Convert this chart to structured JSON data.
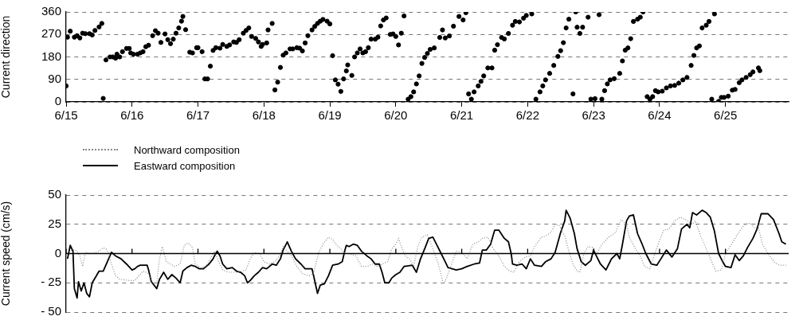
{
  "chart_data": [
    {
      "type": "scatter",
      "ylabel": "Current direction",
      "color": "#000000",
      "marker": "circle",
      "grid": "y",
      "xlim": [
        "--06-15T00:00",
        "--06-25T23:00"
      ],
      "ylim": [
        0,
        360
      ],
      "xticks": [
        {
          "value": "--06-15",
          "label": "6/15"
        },
        {
          "value": "--06-16",
          "label": "6/16"
        },
        {
          "value": "--06-17",
          "label": "6/17"
        },
        {
          "value": "--06-18",
          "label": "6/18"
        },
        {
          "value": "--06-19",
          "label": "6/19"
        },
        {
          "value": "--06-20",
          "label": "6/20"
        },
        {
          "value": "--06-21",
          "label": "6/21"
        },
        {
          "value": "--06-22",
          "label": "6/22"
        },
        {
          "value": "--06-23",
          "label": "6/23"
        },
        {
          "value": "--06-24",
          "label": "6/24"
        },
        {
          "value": "--06-25",
          "label": "6/25"
        }
      ],
      "yticks": [
        0,
        90,
        180,
        270,
        360
      ],
      "x": [
        "--06-15T00:00",
        "--06-15T00:30",
        "--06-15T01:30",
        "--06-15T03:00",
        "--06-15T04:00",
        "--06-15T05:00",
        "--06-15T06:00",
        "--06-15T07:00",
        "--06-15T08:30",
        "--06-15T09:30",
        "--06-15T10:30",
        "--06-15T12:00",
        "--06-15T13:00",
        "--06-15T13:30",
        "--06-15T14:30",
        "--06-15T16:00",
        "--06-15T17:00",
        "--06-15T18:00",
        "--06-15T18:30",
        "--06-15T19:30",
        "--06-15T20:30",
        "--06-15T22:00",
        "--06-15T23:00",
        "--06-15T23:30",
        "--06-16T00:30",
        "--06-16T02:00",
        "--06-16T03:00",
        "--06-16T04:00",
        "--06-16T05:00",
        "--06-16T06:00",
        "--06-16T07:30",
        "--06-16T08:30",
        "--06-16T09:30",
        "--06-16T10:30",
        "--06-16T12:00",
        "--06-16T13:00",
        "--06-16T14:00",
        "--06-16T15:00",
        "--06-16T16:00",
        "--06-16T17:00",
        "--06-16T18:00",
        "--06-16T18:30",
        "--06-16T19:30",
        "--06-16T21:00",
        "--06-16T22:00",
        "--06-16T23:30",
        "--06-17T00:00",
        "--06-17T01:30",
        "--06-17T02:30",
        "--06-17T03:30",
        "--06-17T04:30",
        "--06-17T05:30",
        "--06-17T06:30",
        "--06-17T08:00",
        "--06-17T09:00",
        "--06-17T10:30",
        "--06-17T11:30",
        "--06-17T13:00",
        "--06-17T14:00",
        "--06-17T15:00",
        "--06-17T16:30",
        "--06-17T17:30",
        "--06-17T18:30",
        "--06-17T19:30",
        "--06-17T21:00",
        "--06-17T22:00",
        "--06-17T23:00",
        "--06-17T23:30",
        "--06-18T01:00",
        "--06-18T01:30",
        "--06-18T03:00",
        "--06-18T04:00",
        "--06-18T05:00",
        "--06-18T06:00",
        "--06-18T07:00",
        "--06-18T08:00",
        "--06-18T09:30",
        "--06-18T10:30",
        "--06-18T12:00",
        "--06-18T13:00",
        "--06-18T14:00",
        "--06-18T15:00",
        "--06-18T16:00",
        "--06-18T17:30",
        "--06-18T18:30",
        "--06-18T19:30",
        "--06-18T20:30",
        "--06-18T21:30",
        "--06-18T23:00",
        "--06-19T00:00",
        "--06-19T01:00",
        "--06-19T02:00",
        "--06-19T03:00",
        "--06-19T04:00",
        "--06-19T05:00",
        "--06-19T06:00",
        "--06-19T06:30",
        "--06-19T08:00",
        "--06-19T09:00",
        "--06-19T10:00",
        "--06-19T11:00",
        "--06-19T12:00",
        "--06-19T13:00",
        "--06-19T14:00",
        "--06-19T15:00",
        "--06-19T16:30",
        "--06-19T17:30",
        "--06-19T18:30",
        "--06-19T19:30",
        "--06-19T20:30",
        "--06-19T22:00",
        "--06-19T23:00",
        "--06-20T00:00",
        "--06-20T01:00",
        "--06-20T02:00",
        "--06-20T03:00",
        "--06-20T04:30",
        "--06-20T05:30",
        "--06-20T06:30",
        "--06-20T07:30",
        "--06-20T08:30",
        "--06-20T09:30",
        "--06-20T10:30",
        "--06-20T11:30",
        "--06-20T12:30",
        "--06-20T14:00",
        "--06-20T16:00",
        "--06-20T17:00",
        "--06-20T18:00",
        "--06-20T19:30",
        "--06-20T21:00",
        "--06-20T23:00",
        "--06-21T00:30",
        "--06-21T01:30",
        "--06-21T02:30",
        "--06-21T03:30",
        "--06-21T04:30",
        "--06-21T06:00",
        "--06-21T07:00",
        "--06-21T08:00",
        "--06-21T09:30",
        "--06-21T11:00",
        "--06-21T12:00",
        "--06-21T13:00",
        "--06-21T14:30",
        "--06-21T15:30",
        "--06-21T17:00",
        "--06-21T18:30",
        "--06-21T19:30",
        "--06-21T21:00",
        "--06-21T22:30",
        "--06-21T23:30",
        "--06-22T01:30",
        "--06-22T03:00",
        "--06-22T04:30",
        "--06-22T05:30",
        "--06-22T06:30",
        "--06-22T08:00",
        "--06-22T09:30",
        "--06-22T11:00",
        "--06-22T12:00",
        "--06-22T13:00",
        "--06-22T14:00",
        "--06-22T15:00",
        "--06-22T16:30",
        "--06-22T17:30",
        "--06-22T18:00",
        "--06-22T19:00",
        "--06-22T20:00",
        "--06-22T22:00",
        "--06-22T23:00",
        "--06-23T00:30",
        "--06-23T02:00",
        "--06-23T03:00",
        "--06-23T04:00",
        "--06-23T05:00",
        "--06-23T06:00",
        "--06-23T07:30",
        "--06-23T09:30",
        "--06-23T10:30",
        "--06-23T11:30",
        "--06-23T12:30",
        "--06-23T13:30",
        "--06-23T14:30",
        "--06-23T16:00",
        "--06-23T17:00",
        "--06-23T18:00",
        "--06-23T19:30",
        "--06-23T20:30",
        "--06-23T21:30",
        "--06-23T22:30",
        "--06-23T23:30",
        "--06-24T01:00",
        "--06-24T02:30",
        "--06-24T04:00",
        "--06-24T05:30",
        "--06-24T07:00",
        "--06-24T08:30",
        "--06-24T10:00",
        "--06-24T11:30",
        "--06-24T12:30",
        "--06-24T13:30",
        "--06-24T14:30",
        "--06-24T15:30",
        "--06-24T17:00",
        "--06-24T18:00",
        "--06-24T19:00",
        "--06-24T20:00",
        "--06-24T21:30",
        "--06-24T22:30",
        "--06-24T23:30",
        "--06-25T01:00",
        "--06-25T02:30",
        "--06-25T03:30",
        "--06-25T05:00",
        "--06-25T06:00",
        "--06-25T07:30",
        "--06-25T09:00",
        "--06-25T10:00",
        "--06-25T12:00",
        "--06-25T12:30"
      ],
      "values": [
        64,
        259,
        283,
        259,
        265,
        256,
        275,
        273,
        273,
        268,
        286,
        300,
        314,
        14,
        168,
        180,
        180,
        175,
        191,
        180,
        201,
        214,
        214,
        196,
        191,
        191,
        196,
        201,
        221,
        227,
        265,
        285,
        275,
        238,
        272,
        249,
        233,
        251,
        275,
        296,
        323,
        342,
        289,
        199,
        196,
        217,
        217,
        201,
        92,
        92,
        143,
        206,
        217,
        215,
        230,
        222,
        228,
        240,
        238,
        249,
        275,
        286,
        296,
        262,
        254,
        240,
        222,
        230,
        236,
        288,
        314,
        48,
        79,
        138,
        187,
        196,
        212,
        212,
        217,
        215,
        204,
        236,
        265,
        288,
        302,
        314,
        323,
        330,
        323,
        312,
        185,
        88,
        71,
        42,
        92,
        124,
        148,
        106,
        180,
        196,
        212,
        196,
        201,
        217,
        251,
        251,
        259,
        304,
        328,
        336,
        270,
        272,
        262,
        228,
        275,
        344,
        11,
        21,
        40,
        72,
        104,
        154,
        178,
        194,
        210,
        216,
        258,
        288,
        256,
        264,
        303,
        342,
        328,
        357,
        32,
        11,
        40,
        64,
        82,
        104,
        136,
        136,
        207,
        229,
        258,
        252,
        274,
        307,
        322,
        320,
        335,
        346,
        352,
        11,
        40,
        64,
        88,
        114,
        146,
        182,
        205,
        237,
        296,
        331,
        32,
        360,
        299,
        274,
        299,
        339,
        11,
        13,
        349,
        11,
        45,
        72,
        88,
        93,
        114,
        164,
        207,
        216,
        253,
        322,
        331,
        339,
        360,
        21,
        11,
        21,
        45,
        40,
        43,
        56,
        64,
        66,
        75,
        88,
        98,
        146,
        186,
        216,
        224,
        296,
        307,
        322,
        11,
        352,
        2,
        18,
        18,
        23,
        47,
        50,
        77,
        88,
        98,
        109,
        120,
        136,
        125
      ]
    },
    {
      "type": "line",
      "ylabel": "Current speed (cm/s)",
      "marker": "none",
      "grid": "y",
      "legend": "top left",
      "tick_labels": "y",
      "xlim": [
        "--06-15T00:00",
        "--06-25T23:00"
      ],
      "ylim": [
        -50,
        50
      ],
      "xticks": [
        {
          "value": "--06-15",
          "label": null
        },
        {
          "value": "--06-16",
          "label": null
        },
        {
          "value": "--06-17",
          "label": null
        },
        {
          "value": "--06-18",
          "label": null
        },
        {
          "value": "--06-19",
          "label": null
        },
        {
          "value": "--06-20",
          "label": null
        },
        {
          "value": "--06-21",
          "label": null
        },
        {
          "value": "--06-22",
          "label": null
        },
        {
          "value": "--06-23",
          "label": null
        },
        {
          "value": "--06-24",
          "label": null
        },
        {
          "value": "--06-25",
          "label": null
        }
      ],
      "yticks": [
        {
          "value": -50,
          "label": "- 50"
        },
        {
          "value": -25,
          "label": "- 25"
        },
        0,
        25,
        50
      ],
      "ref_lines": [
        {
          "axis": "y",
          "value": 0,
          "color": "#000000"
        }
      ],
      "series": [
        {
          "name": "Northward composition",
          "color": "#888888",
          "line_style": "dotted",
          "x": [
            "--06-15T00:30",
            "--06-15T02:00",
            "--06-15T03:30",
            "--06-15T05:00",
            "--06-15T06:00",
            "--06-15T07:00",
            "--06-15T09:30",
            "--06-15T12:00",
            "--06-15T13:30",
            "--06-15T14:30",
            "--06-15T15:30",
            "--06-15T16:30",
            "--06-15T18:00",
            "--06-15T19:30",
            "--06-15T23:00",
            "--06-16T01:00",
            "--06-16T02:30",
            "--06-16T04:00",
            "--06-16T06:00",
            "--06-16T07:30",
            "--06-16T09:00",
            "--06-16T10:00",
            "--06-16T11:00",
            "--06-16T12:30",
            "--06-16T14:00",
            "--06-16T15:30",
            "--06-16T17:30",
            "--06-16T19:00",
            "--06-16T20:30",
            "--06-16T22:00",
            "--06-16T23:00",
            "--06-17T01:00",
            "--06-17T03:00",
            "--06-17T05:00",
            "--06-17T06:00",
            "--06-17T07:30",
            "--06-17T09:00",
            "--06-17T11:00",
            "--06-17T12:30",
            "--06-17T14:30",
            "--06-17T17:30",
            "--06-17T19:00",
            "--06-17T20:30",
            "--06-17T22:30",
            "--06-18T00:00",
            "--06-18T02:00",
            "--06-18T04:00",
            "--06-18T06:00",
            "--06-18T07:00",
            "--06-18T10:00",
            "--06-18T12:00",
            "--06-18T14:00",
            "--06-18T16:30",
            "--06-18T18:00",
            "--06-18T20:00",
            "--06-18T21:30",
            "--06-18T23:30",
            "--06-19T01:00",
            "--06-19T02:30",
            "--06-19T04:00",
            "--06-19T05:30",
            "--06-19T07:00",
            "--06-19T09:30",
            "--06-19T11:30",
            "--06-19T13:30",
            "--06-19T15:30",
            "--06-19T17:30",
            "--06-19T19:00",
            "--06-19T21:00",
            "--06-19T22:30",
            "--06-20T00:00",
            "--06-20T01:00",
            "--06-20T02:00",
            "--06-20T03:30",
            "--06-20T05:00",
            "--06-20T06:30",
            "--06-20T08:00",
            "--06-20T09:30",
            "--06-20T11:30",
            "--06-20T13:30",
            "--06-20T15:30",
            "--06-20T17:00",
            "--06-20T18:00",
            "--06-20T20:00",
            "--06-20T22:00",
            "--06-21T00:00",
            "--06-21T02:00",
            "--06-21T04:00",
            "--06-21T06:00",
            "--06-21T07:30",
            "--06-21T09:30",
            "--06-21T11:30",
            "--06-21T13:30",
            "--06-21T15:30",
            "--06-21T17:30",
            "--06-21T19:00",
            "--06-21T21:00",
            "--06-21T23:00",
            "--06-22T01:00",
            "--06-22T02:30",
            "--06-22T05:00",
            "--06-22T06:30",
            "--06-22T08:30",
            "--06-22T10:00",
            "--06-22T11:30",
            "--06-22T13:30",
            "--06-22T15:00",
            "--06-22T16:30",
            "--06-22T18:00",
            "--06-22T19:00",
            "--06-22T20:30",
            "--06-22T22:00",
            "--06-23T00:00",
            "--06-23T01:00",
            "--06-23T03:00",
            "--06-23T05:30",
            "--06-23T08:00",
            "--06-23T10:00",
            "--06-23T12:00",
            "--06-23T13:00",
            "--06-23T15:00",
            "--06-23T17:00",
            "--06-23T18:30",
            "--06-23T20:30",
            "--06-23T22:00",
            "--06-23T23:30",
            "--06-24T01:30",
            "--06-24T03:30",
            "--06-24T05:30",
            "--06-24T07:30",
            "--06-24T09:30",
            "--06-24T12:00",
            "--06-24T13:00",
            "--06-24T15:00",
            "--06-24T17:00",
            "--06-24T19:00",
            "--06-24T20:30",
            "--06-24T22:30",
            "--06-25T00:00",
            "--06-25T02:30",
            "--06-25T04:30",
            "--06-25T07:00",
            "--06-25T09:00",
            "--06-25T10:30",
            "--06-25T12:00",
            "--06-25T13:30",
            "--06-25T15:30",
            "--06-25T18:00",
            "--06-25T20:00",
            "--06-25T22:00"
          ],
          "values": [
            0,
            3,
            3,
            -2,
            -11,
            1,
            0,
            2,
            5,
            4,
            0,
            -9,
            -19,
            -22,
            -23,
            -23,
            -19,
            -15,
            -17,
            -25,
            -25,
            -4.5,
            6,
            -7,
            -9,
            -11,
            -9,
            7,
            9,
            5,
            -9,
            -12,
            -11,
            -2,
            2,
            -7,
            -14,
            -16,
            -16,
            -16,
            -14,
            -4.5,
            1,
            0,
            -7,
            -9,
            -7,
            -1,
            6,
            -2,
            -11,
            -17,
            -19,
            -17,
            1,
            8,
            14,
            12,
            7,
            4,
            0,
            0,
            -2,
            -11,
            -11,
            -9,
            -11,
            -9,
            -7,
            4,
            8,
            13,
            6,
            -2,
            -4.5,
            -11,
            6,
            14,
            16,
            4,
            -9,
            -23,
            -24,
            -11,
            2,
            1,
            -4.5,
            8,
            10,
            13,
            14,
            4,
            -2,
            -11,
            -15,
            -16,
            -7,
            -3,
            -2,
            6,
            14,
            15,
            18,
            25,
            24,
            15,
            2,
            -9,
            -15,
            -16,
            0,
            6,
            5,
            -1,
            8,
            14,
            18,
            29,
            25,
            14,
            5,
            -2,
            -11,
            -13,
            -2,
            8,
            20,
            21,
            28,
            31,
            29,
            25,
            28,
            15,
            4,
            -7,
            -15,
            -14,
            0,
            9,
            17,
            25,
            26,
            22,
            22,
            8,
            0,
            -8,
            -10,
            -10
          ]
        },
        {
          "name": "Eastward composition",
          "color": "#000000",
          "x": [
            "--06-15T00:30",
            "--06-15T01:30",
            "--06-15T02:30",
            "--06-15T03:00",
            "--06-15T04:00",
            "--06-15T04:30",
            "--06-15T05:30",
            "--06-15T06:30",
            "--06-15T07:30",
            "--06-15T08:30",
            "--06-15T09:30",
            "--06-15T11:00",
            "--06-15T12:00",
            "--06-15T13:30",
            "--06-15T15:00",
            "--06-15T16:30",
            "--06-15T18:00",
            "--06-15T20:00",
            "--06-15T22:00",
            "--06-16T00:00",
            "--06-16T01:00",
            "--06-16T02:00",
            "--06-16T03:00",
            "--06-16T04:30",
            "--06-16T05:30",
            "--06-16T06:00",
            "--06-16T07:00",
            "--06-16T09:00",
            "--06-16T10:00",
            "--06-16T11:30",
            "--06-16T13:00",
            "--06-16T14:30",
            "--06-16T16:00",
            "--06-16T17:30",
            "--06-16T18:30",
            "--06-16T20:00",
            "--06-16T21:30",
            "--06-16T23:00",
            "--06-17T00:30",
            "--06-17T02:00",
            "--06-17T04:00",
            "--06-17T05:30",
            "--06-17T06:00",
            "--06-17T07:00",
            "--06-17T08:00",
            "--06-17T09:00",
            "--06-17T10:30",
            "--06-17T12:30",
            "--06-17T14:00",
            "--06-17T15:30",
            "--06-17T17:00",
            "--06-17T18:00",
            "--06-17T19:00",
            "--06-17T20:30",
            "--06-17T22:00",
            "--06-17T23:30",
            "--06-18T01:00",
            "--06-18T03:00",
            "--06-18T04:30",
            "--06-18T06:00",
            "--06-18T07:00",
            "--06-18T08:30",
            "--06-18T10:00",
            "--06-18T11:30",
            "--06-18T13:30",
            "--06-18T15:00",
            "--06-18T17:30",
            "--06-18T18:00",
            "--06-18T19:30",
            "--06-18T20:30",
            "--06-18T22:00",
            "--06-18T23:30",
            "--06-19T01:00",
            "--06-19T03:00",
            "--06-19T04:30",
            "--06-19T05:30",
            "--06-19T06:00",
            "--06-19T07:00",
            "--06-19T08:30",
            "--06-19T10:00",
            "--06-19T11:30",
            "--06-19T13:30",
            "--06-19T15:00",
            "--06-19T16:30",
            "--06-19T18:00",
            "--06-19T19:00",
            "--06-19T20:00",
            "--06-19T21:30",
            "--06-19T22:30",
            "--06-20T00:00",
            "--06-20T01:30",
            "--06-20T03:00",
            "--06-20T06:00",
            "--06-20T07:30",
            "--06-20T09:00",
            "--06-20T10:30",
            "--06-20T12:00",
            "--06-20T13:30",
            "--06-20T15:00",
            "--06-20T16:30",
            "--06-20T18:00",
            "--06-20T19:00",
            "--06-20T20:30",
            "--06-20T22:00",
            "--06-21T00:00",
            "--06-21T02:00",
            "--06-21T04:30",
            "--06-21T06:30",
            "--06-21T07:30",
            "--06-21T09:00",
            "--06-21T10:30",
            "--06-21T12:00",
            "--06-21T13:30",
            "--06-21T15:30",
            "--06-21T17:00",
            "--06-21T18:00",
            "--06-21T18:30",
            "--06-21T20:00",
            "--06-21T22:00",
            "--06-21T23:30",
            "--06-22T01:00",
            "--06-22T02:30",
            "--06-22T05:00",
            "--06-22T06:30",
            "--06-22T08:30",
            "--06-22T10:00",
            "--06-22T12:00",
            "--06-22T13:30",
            "--06-22T14:00",
            "--06-22T15:30",
            "--06-22T17:00",
            "--06-22T18:00",
            "--06-22T19:30",
            "--06-22T21:00",
            "--06-22T23:00",
            "--06-23T00:00",
            "--06-23T01:00",
            "--06-23T02:30",
            "--06-23T04:30",
            "--06-23T06:30",
            "--06-23T08:30",
            "--06-23T09:30",
            "--06-23T10:30",
            "--06-23T12:00",
            "--06-23T13:00",
            "--06-23T14:30",
            "--06-23T16:00",
            "--06-23T17:30",
            "--06-23T19:00",
            "--06-23T21:00",
            "--06-23T23:00",
            "--06-24T00:30",
            "--06-24T02:30",
            "--06-24T04:30",
            "--06-24T06:30",
            "--06-24T08:00",
            "--06-24T10:00",
            "--06-24T11:00",
            "--06-24T12:00",
            "--06-24T13:30",
            "--06-24T15:30",
            "--06-24T17:00",
            "--06-24T18:30",
            "--06-24T20:00",
            "--06-24T21:30",
            "--06-24T23:00",
            "--06-25T00:00",
            "--06-25T02:00",
            "--06-25T03:30",
            "--06-25T05:00",
            "--06-25T06:30",
            "--06-25T08:00",
            "--06-25T10:00",
            "--06-25T11:30",
            "--06-25T13:00",
            "--06-25T15:30",
            "--06-25T17:30",
            "--06-25T19:30",
            "--06-25T20:30",
            "--06-25T22:00"
          ],
          "values": [
            -4.5,
            7,
            2,
            -30,
            -38,
            -24,
            -32,
            -25,
            -34,
            -37,
            -25,
            -19,
            -15,
            -15,
            -7,
            1,
            -2,
            -4.5,
            -9,
            -14,
            -13,
            -11,
            -10,
            -10,
            -10,
            -14,
            -24,
            -30,
            -22,
            -16,
            -22,
            -18,
            -21,
            -25,
            -15,
            -12,
            -10,
            -11,
            -13,
            -13,
            -9,
            -4.5,
            -2,
            2,
            -2,
            -9,
            -13,
            -12,
            -15,
            -16,
            -19,
            -25,
            -23,
            -19,
            -16,
            -12,
            -13,
            -9,
            -10,
            -4.5,
            3,
            10,
            2,
            -4.5,
            -9,
            -13,
            -13,
            -18,
            -34,
            -27,
            -26,
            -19,
            -10,
            -9,
            -7,
            3,
            7,
            6,
            8,
            7,
            2,
            -2,
            -4.5,
            -9,
            -9,
            -16,
            -25,
            -25,
            -21,
            -18,
            -16,
            -11,
            -10,
            -16,
            -4.5,
            4,
            13,
            14,
            7,
            0,
            -7,
            -12,
            -13,
            -14,
            -13,
            -11,
            -9,
            -8,
            3,
            3,
            8,
            20,
            20,
            13,
            10,
            0,
            -9,
            -10,
            -9,
            -13,
            -4.5,
            -10,
            -11,
            -7,
            -4.5,
            1,
            18,
            28,
            37,
            30,
            17,
            4,
            -7,
            -10,
            -6,
            3,
            -2,
            -9,
            -14,
            -4.5,
            0,
            -4.5,
            8,
            28,
            32,
            33,
            17,
            9,
            0,
            -9,
            -10,
            -4.5,
            3,
            -3,
            4,
            21,
            25,
            22,
            35,
            33,
            37,
            35,
            31,
            19,
            0,
            -7,
            -11,
            -12,
            -1,
            -6,
            -2,
            5,
            13,
            21,
            34,
            34,
            29,
            17,
            10,
            8
          ]
        }
      ]
    }
  ]
}
